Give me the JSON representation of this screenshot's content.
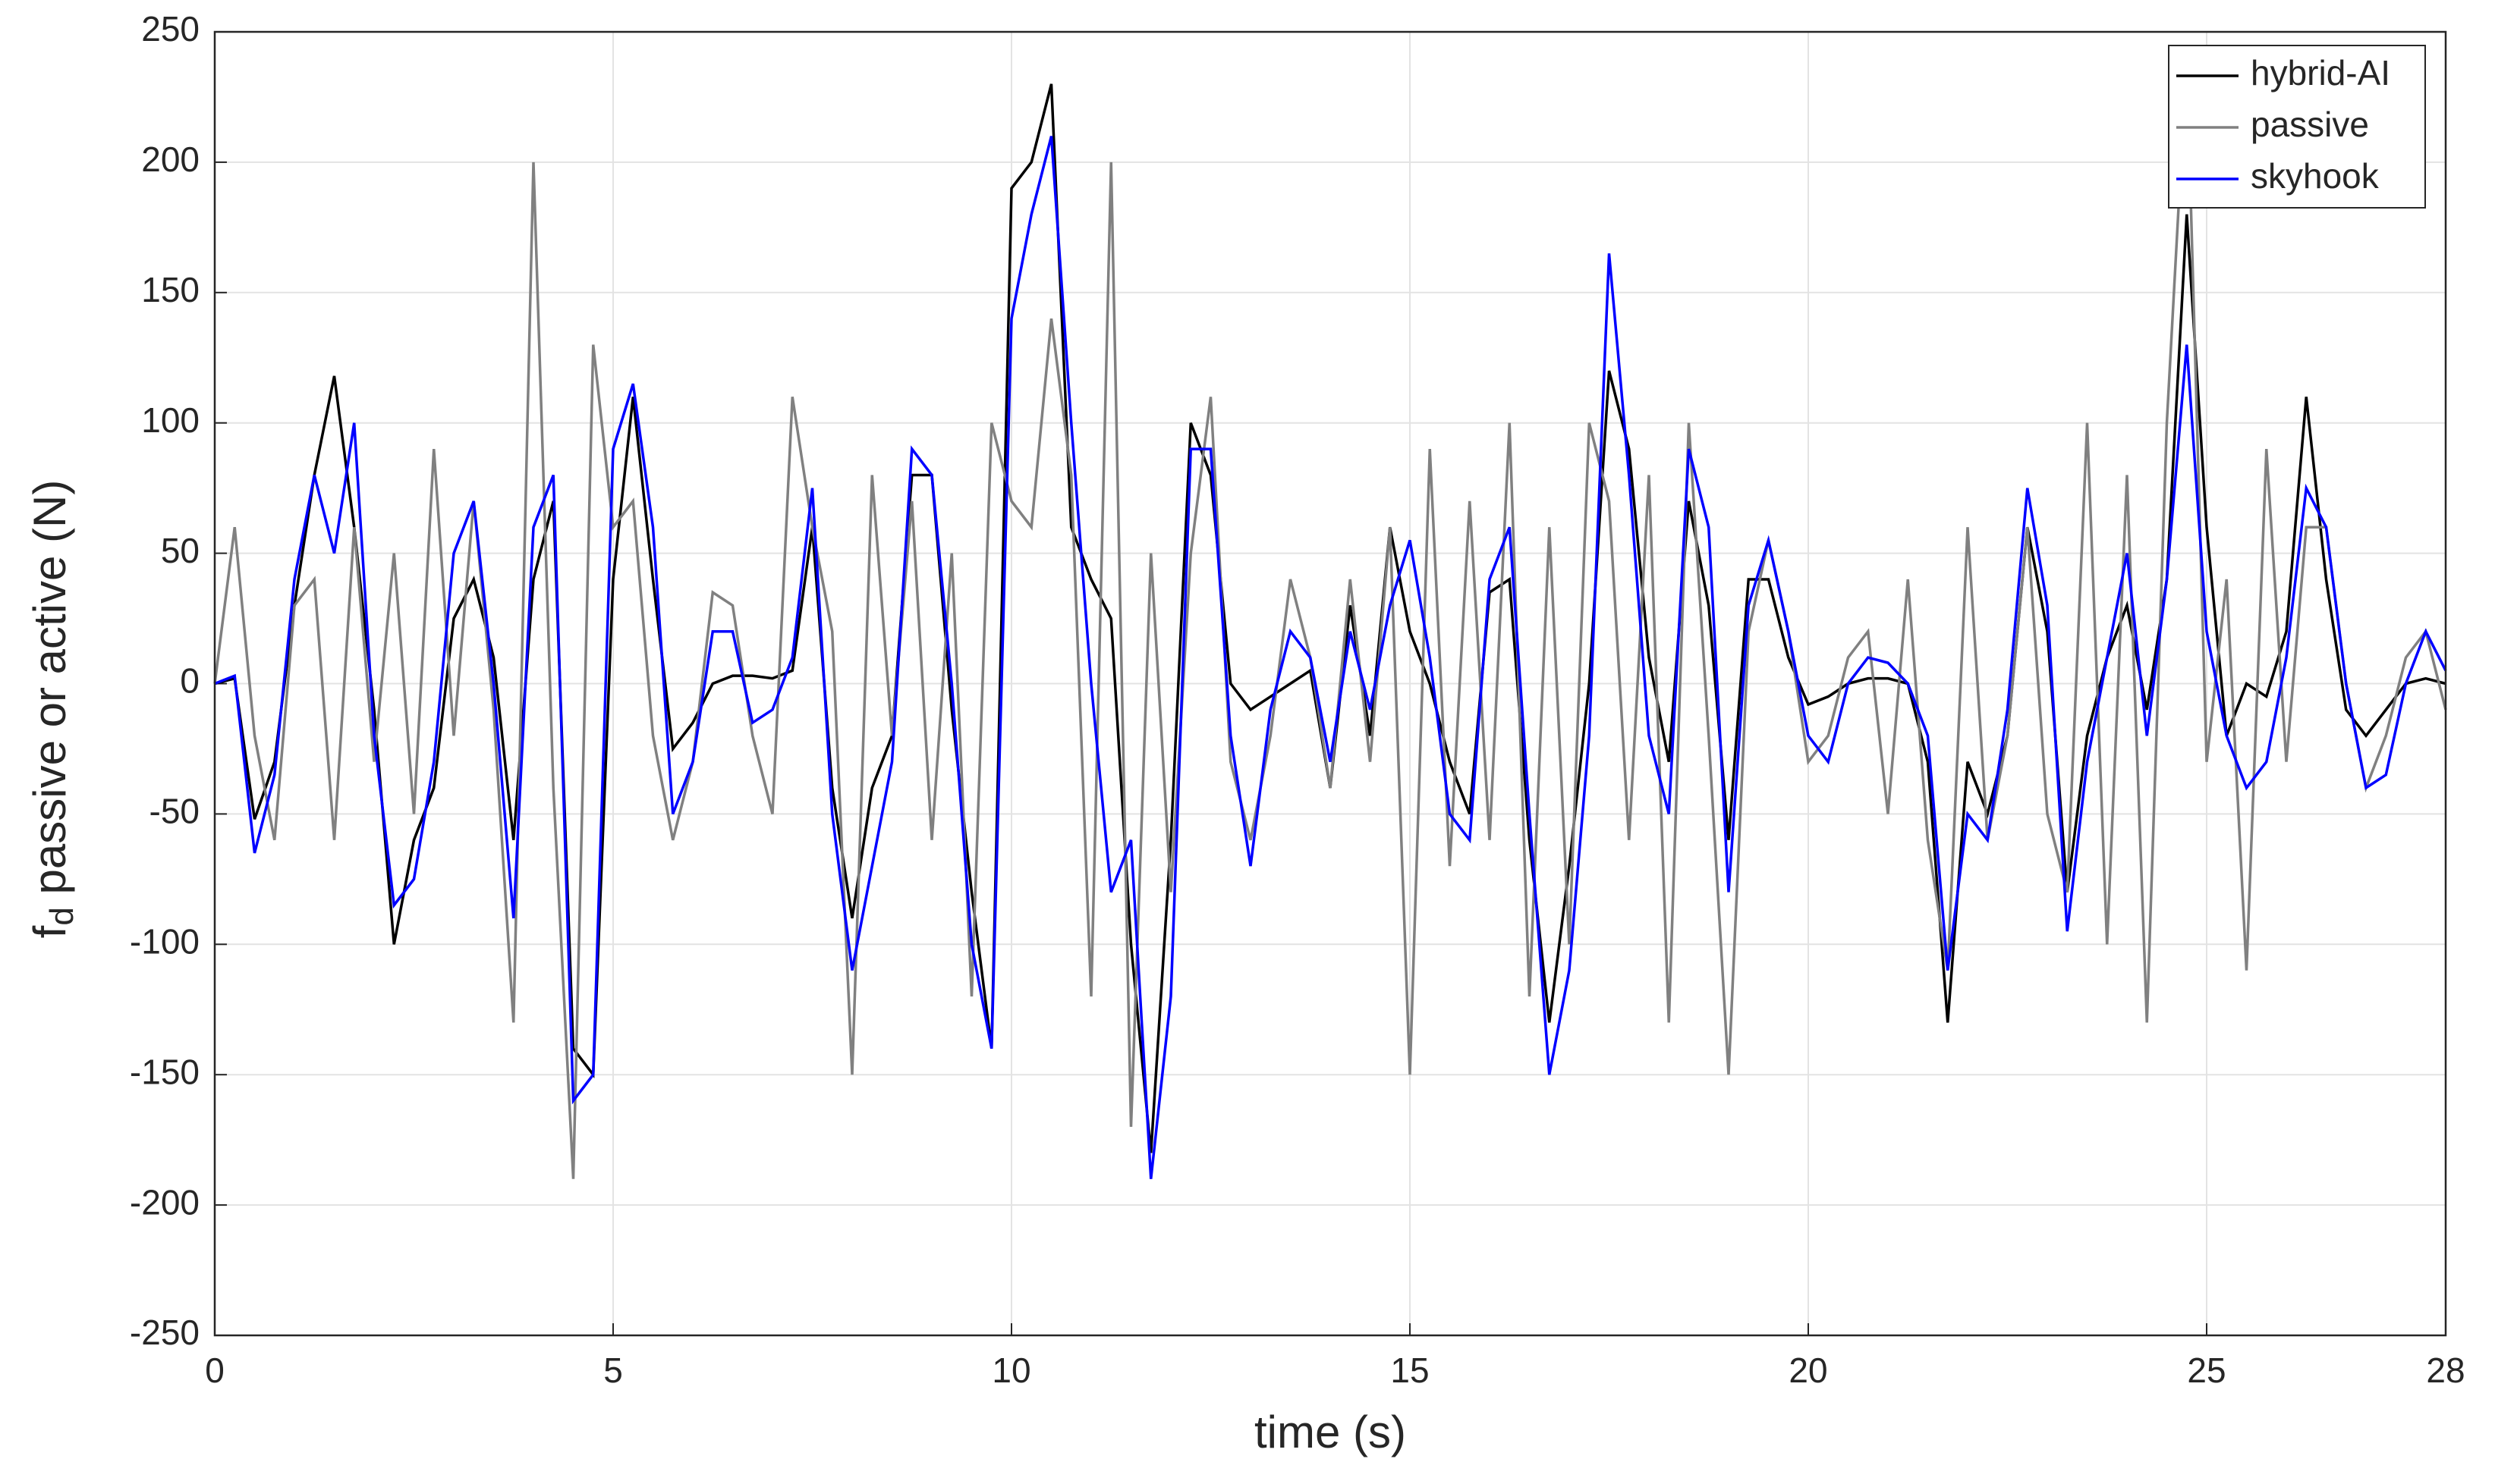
{
  "chart_data": {
    "type": "line",
    "xlabel": "time (s)",
    "ylabel": "f",
    "ylabel_subscript": "d",
    "ylabel_rest": " passive or active (N)",
    "x": [
      0,
      0.25,
      0.5,
      0.75,
      1,
      1.25,
      1.5,
      1.75,
      2,
      2.25,
      2.5,
      2.75,
      3,
      3.25,
      3.5,
      3.75,
      4,
      4.25,
      4.5,
      4.75,
      5,
      5.25,
      5.5,
      5.75,
      6,
      6.25,
      6.5,
      6.75,
      7,
      7.25,
      7.5,
      7.75,
      8,
      8.25,
      8.5,
      8.75,
      9,
      9.25,
      9.5,
      9.75,
      10,
      10.25,
      10.5,
      10.75,
      11,
      11.25,
      11.5,
      11.75,
      12,
      12.25,
      12.5,
      12.75,
      13,
      13.25,
      13.5,
      13.75,
      14,
      14.25,
      14.5,
      14.75,
      15,
      15.25,
      15.5,
      15.75,
      16,
      16.25,
      16.5,
      16.75,
      17,
      17.25,
      17.5,
      17.75,
      18,
      18.25,
      18.5,
      18.75,
      19,
      19.25,
      19.5,
      19.75,
      20,
      20.25,
      20.5,
      20.75,
      21,
      21.25,
      21.5,
      21.75,
      22,
      22.25,
      22.5,
      22.75,
      23,
      23.25,
      23.5,
      23.75,
      24,
      24.25,
      24.5,
      24.75,
      25,
      25.25,
      25.5,
      25.75,
      26,
      26.25,
      26.5,
      26.75,
      27,
      27.25,
      27.5,
      27.75,
      28
    ],
    "series": [
      {
        "name": "hybrid-AI",
        "color": "#000000",
        "values": [
          0,
          2,
          -52,
          -30,
          30,
          80,
          118,
          60,
          -10,
          -100,
          -60,
          -40,
          25,
          40,
          10,
          -60,
          40,
          70,
          -140,
          -150,
          40,
          110,
          40,
          -25,
          -15,
          0,
          3,
          3,
          2,
          5,
          60,
          -40,
          -90,
          -40,
          -20,
          80,
          80,
          -10,
          -80,
          -140,
          190,
          200,
          230,
          60,
          40,
          25,
          -100,
          -180,
          -60,
          100,
          80,
          0,
          -10,
          -5,
          0,
          5,
          -40,
          30,
          -20,
          60,
          20,
          0,
          -30,
          -50,
          35,
          40,
          -60,
          -130,
          -70,
          0,
          120,
          90,
          10,
          -30,
          70,
          30,
          -60,
          40,
          40,
          10,
          -8,
          -5,
          0,
          2,
          2,
          0,
          -30,
          -130,
          -30,
          -50,
          -20,
          60,
          20,
          -80,
          -20,
          10,
          30,
          -10,
          40,
          180,
          60,
          -20,
          0,
          -5,
          20,
          110,
          40,
          -10,
          -20,
          -10,
          0,
          2,
          0
        ]
      },
      {
        "name": "passive",
        "color": "#808080",
        "values": [
          0,
          60,
          -20,
          -60,
          30,
          40,
          -60,
          60,
          -30,
          50,
          -50,
          90,
          -20,
          70,
          -10,
          -130,
          200,
          -40,
          -190,
          130,
          60,
          70,
          -20,
          -60,
          -30,
          35,
          30,
          -20,
          -50,
          110,
          60,
          20,
          -150,
          80,
          -20,
          70,
          -60,
          50,
          -120,
          100,
          70,
          60,
          140,
          80,
          -120,
          200,
          -170,
          50,
          -80,
          50,
          110,
          -30,
          -60,
          -20,
          40,
          10,
          -40,
          40,
          -30,
          60,
          -150,
          90,
          -70,
          70,
          -60,
          100,
          -120,
          60,
          -100,
          100,
          70,
          -60,
          80,
          -130,
          100,
          -20,
          -150,
          20,
          55,
          20,
          -30,
          -20,
          10,
          20,
          -50,
          40,
          -60,
          -110,
          60,
          -60,
          -20,
          60,
          -50,
          -80,
          100,
          -100,
          80,
          -130,
          100,
          240,
          -30,
          40,
          -110,
          90,
          -30,
          60,
          60,
          0,
          -40,
          -20,
          10,
          20,
          -10
        ]
      },
      {
        "name": "skyhook",
        "color": "#0000ff",
        "values": [
          0,
          3,
          -65,
          -35,
          40,
          80,
          50,
          100,
          -20,
          -85,
          -75,
          -30,
          50,
          70,
          0,
          -90,
          60,
          80,
          -160,
          -150,
          90,
          115,
          60,
          -50,
          -30,
          20,
          20,
          -15,
          -10,
          10,
          75,
          -50,
          -110,
          -70,
          -30,
          90,
          80,
          0,
          -100,
          -140,
          140,
          180,
          210,
          100,
          0,
          -80,
          -60,
          -190,
          -120,
          90,
          90,
          -20,
          -70,
          -10,
          20,
          10,
          -30,
          20,
          -10,
          30,
          55,
          10,
          -50,
          -60,
          40,
          60,
          -50,
          -150,
          -110,
          -20,
          165,
          80,
          -20,
          -50,
          90,
          60,
          -80,
          30,
          55,
          20,
          -20,
          -30,
          0,
          10,
          8,
          0,
          -20,
          -110,
          -50,
          -60,
          -10,
          75,
          30,
          -95,
          -30,
          10,
          50,
          -20,
          40,
          130,
          20,
          -20,
          -40,
          -30,
          10,
          75,
          60,
          0,
          -40,
          -35,
          0,
          20,
          5
        ]
      }
    ],
    "xlim": [
      0,
      28
    ],
    "xticks": [
      0,
      5,
      10,
      15,
      20,
      25,
      28
    ],
    "ylim": [
      -250,
      250
    ],
    "yticks": [
      -250,
      -200,
      -150,
      -100,
      -50,
      0,
      50,
      100,
      150,
      200,
      250
    ],
    "grid": true,
    "legend": "upper right"
  }
}
